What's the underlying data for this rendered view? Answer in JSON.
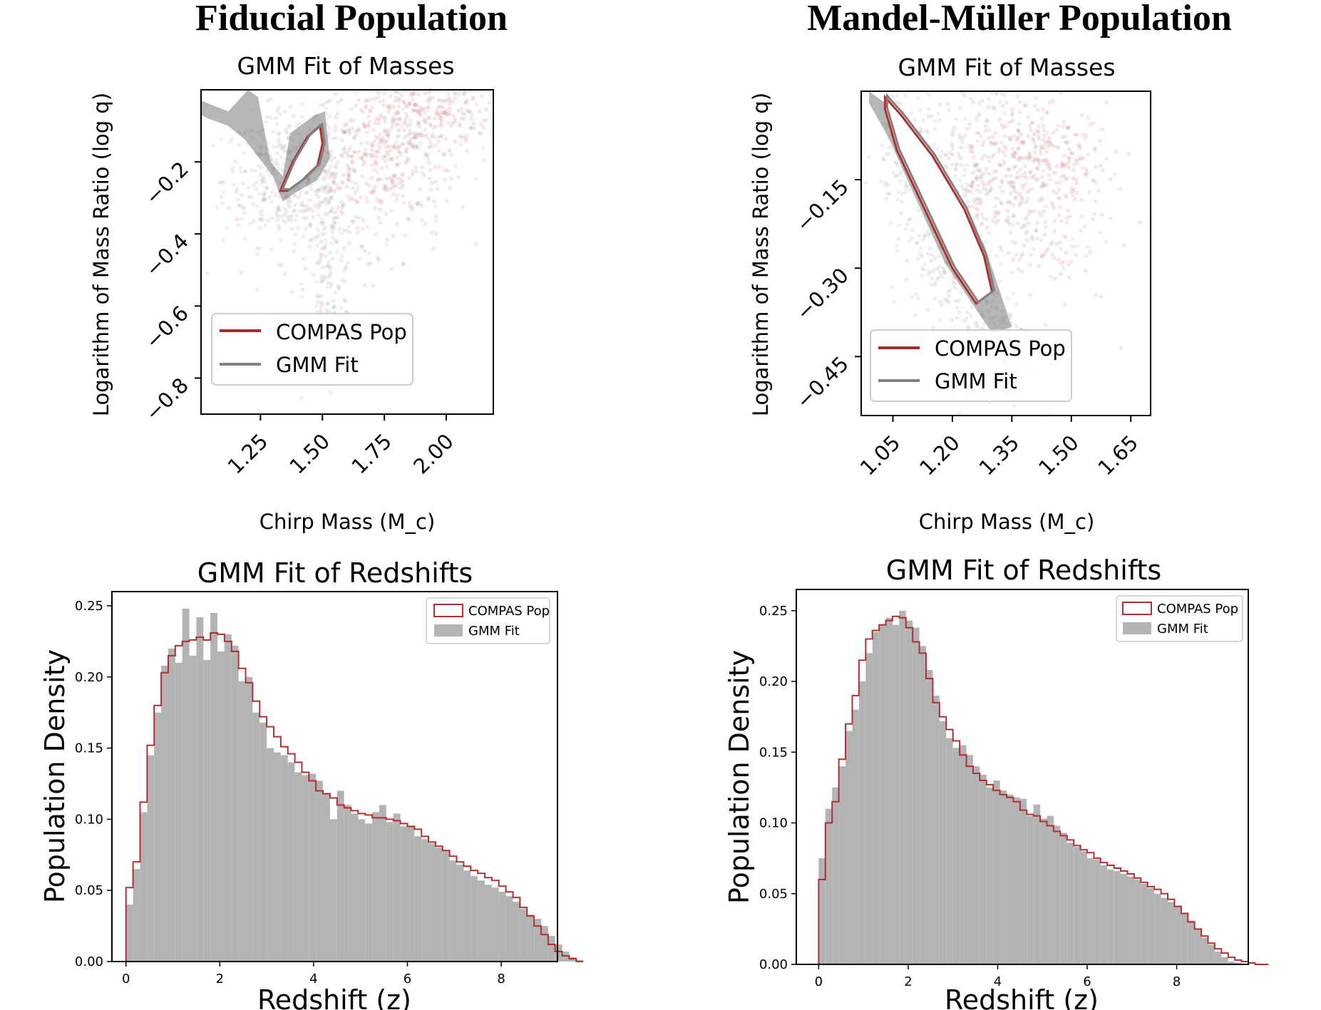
{
  "figure": {
    "col_titles": [
      "Fiducial Population",
      "Mandel-Müller Population"
    ]
  },
  "colors": {
    "compas": "#b03030",
    "gmm": "#808080",
    "hist_fill": "#b3b3b3",
    "scatter_red": "#c87070",
    "scatter_gray": "#9a9a9a"
  },
  "chart_data": [
    {
      "id": "fid_mass",
      "type": "scatter",
      "title": "GMM Fit of Masses",
      "xlabel": "Chirp Mass (M_c)",
      "ylabel": "Logarithm of Mass Ratio (log q)",
      "xlim": [
        1.01,
        2.19
      ],
      "ylim": [
        -0.9,
        0.0
      ],
      "xticks": [
        1.25,
        1.5,
        1.75,
        2.0
      ],
      "xticklabels": [
        "1.25",
        "1.50",
        "1.75",
        "2.00"
      ],
      "yticks": [
        -0.2,
        -0.4,
        -0.6,
        -0.8
      ],
      "yticklabels": [
        "−0.2",
        "−0.4",
        "−0.6",
        "−0.8"
      ],
      "legend": [
        "COMPAS Pop",
        "GMM Fit"
      ],
      "legend_loc": "lower left",
      "clusters": [
        {
          "cx": 1.38,
          "cy": -0.25,
          "sx": 0.14,
          "sy": 0.09,
          "n": 420,
          "color": "gray"
        },
        {
          "cx": 1.53,
          "cy": -0.55,
          "sx": 0.05,
          "sy": 0.12,
          "n": 140,
          "color": "gray"
        },
        {
          "cx": 1.75,
          "cy": -0.18,
          "sx": 0.14,
          "sy": 0.1,
          "n": 260,
          "color": "red"
        },
        {
          "cx": 1.95,
          "cy": -0.05,
          "sx": 0.14,
          "sy": 0.05,
          "n": 170,
          "color": "red"
        },
        {
          "cx": 1.6,
          "cy": -0.3,
          "sx": 0.2,
          "sy": 0.12,
          "n": 160,
          "color": "red"
        },
        {
          "cx": 1.9,
          "cy": -0.1,
          "sx": 0.15,
          "sy": 0.09,
          "n": 140,
          "color": "gray"
        }
      ],
      "contours": [
        {
          "kind": "outer",
          "points": [
            [
              1.01,
              -0.03
            ],
            [
              1.12,
              -0.06
            ],
            [
              1.2,
              0.0
            ],
            [
              1.24,
              -0.02
            ],
            [
              1.29,
              -0.2
            ],
            [
              1.34,
              -0.24
            ],
            [
              1.37,
              -0.12
            ],
            [
              1.47,
              -0.07
            ],
            [
              1.51,
              -0.06
            ],
            [
              1.53,
              -0.19
            ],
            [
              1.48,
              -0.25
            ],
            [
              1.38,
              -0.29
            ],
            [
              1.34,
              -0.31
            ],
            [
              1.3,
              -0.24
            ],
            [
              1.19,
              -0.14
            ],
            [
              1.12,
              -0.1
            ],
            [
              1.04,
              -0.08
            ],
            [
              1.01,
              -0.07
            ]
          ]
        },
        {
          "kind": "inner",
          "points": [
            [
              1.33,
              -0.28
            ],
            [
              1.38,
              -0.2
            ],
            [
              1.44,
              -0.13
            ],
            [
              1.49,
              -0.1
            ],
            [
              1.5,
              -0.15
            ],
            [
              1.48,
              -0.21
            ],
            [
              1.42,
              -0.25
            ],
            [
              1.36,
              -0.28
            ]
          ]
        }
      ]
    },
    {
      "id": "mm_mass",
      "type": "scatter",
      "title": "GMM Fit of Masses",
      "xlabel": "Chirp Mass (M_c)",
      "ylabel": "Logarithm of Mass Ratio (log q)",
      "xlim": [
        0.97,
        1.7
      ],
      "ylim": [
        -0.55,
        0.0
      ],
      "xticks": [
        1.05,
        1.2,
        1.35,
        1.5,
        1.65
      ],
      "xticklabels": [
        "1.05",
        "1.20",
        "1.35",
        "1.50",
        "1.65"
      ],
      "yticks": [
        -0.15,
        -0.3,
        -0.45
      ],
      "yticklabels": [
        "−0.15",
        "−0.30",
        "−0.45"
      ],
      "legend": [
        "COMPAS Pop",
        "GMM Fit"
      ],
      "legend_loc": "lower left",
      "clusters": [
        {
          "cx": 1.08,
          "cy": -0.1,
          "sx": 0.04,
          "sy": 0.06,
          "n": 120,
          "color": "gray"
        },
        {
          "cx": 1.18,
          "cy": -0.25,
          "sx": 0.05,
          "sy": 0.07,
          "n": 220,
          "color": "gray"
        },
        {
          "cx": 1.3,
          "cy": -0.42,
          "sx": 0.05,
          "sy": 0.06,
          "n": 180,
          "color": "gray"
        },
        {
          "cx": 1.35,
          "cy": -0.1,
          "sx": 0.1,
          "sy": 0.08,
          "n": 320,
          "color": "red"
        },
        {
          "cx": 1.42,
          "cy": -0.18,
          "sx": 0.09,
          "sy": 0.1,
          "n": 220,
          "color": "red"
        },
        {
          "cx": 1.3,
          "cy": -0.12,
          "sx": 0.12,
          "sy": 0.08,
          "n": 160,
          "color": "gray"
        }
      ],
      "contours": [
        {
          "kind": "outer",
          "points": [
            [
              0.99,
              0.0
            ],
            [
              1.05,
              -0.03
            ],
            [
              1.14,
              -0.1
            ],
            [
              1.22,
              -0.19
            ],
            [
              1.28,
              -0.26
            ],
            [
              1.32,
              -0.34
            ],
            [
              1.35,
              -0.4
            ],
            [
              1.3,
              -0.41
            ],
            [
              1.25,
              -0.36
            ],
            [
              1.18,
              -0.29
            ],
            [
              1.12,
              -0.2
            ],
            [
              1.04,
              -0.08
            ],
            [
              0.99,
              -0.02
            ]
          ]
        },
        {
          "kind": "inner",
          "points": [
            [
              1.03,
              -0.01
            ],
            [
              1.07,
              -0.04
            ],
            [
              1.15,
              -0.11
            ],
            [
              1.23,
              -0.2
            ],
            [
              1.28,
              -0.28
            ],
            [
              1.3,
              -0.34
            ],
            [
              1.26,
              -0.36
            ],
            [
              1.2,
              -0.3
            ],
            [
              1.13,
              -0.2
            ],
            [
              1.06,
              -0.1
            ],
            [
              1.03,
              -0.03
            ]
          ]
        }
      ]
    },
    {
      "id": "fid_z",
      "type": "bar",
      "title": "GMM Fit of Redshifts",
      "xlabel": "Redshift (z)",
      "ylabel": "Population Density",
      "xlim": [
        -0.3,
        9.2
      ],
      "ylim": [
        0.0,
        0.26
      ],
      "xticks": [
        0,
        2,
        4,
        6,
        8
      ],
      "yticks": [
        0.0,
        0.05,
        0.1,
        0.15,
        0.2,
        0.25
      ],
      "yticklabels": [
        "0.00",
        "0.05",
        "0.10",
        "0.15",
        "0.20",
        "0.25"
      ],
      "legend": [
        "COMPAS Pop",
        "GMM Fit"
      ],
      "legend_loc": "upper right",
      "bin_start": 0.0,
      "bin_width": 0.15,
      "gmm_values": [
        0.04,
        0.065,
        0.105,
        0.145,
        0.175,
        0.208,
        0.22,
        0.21,
        0.248,
        0.215,
        0.242,
        0.212,
        0.245,
        0.218,
        0.23,
        0.222,
        0.197,
        0.2,
        0.175,
        0.168,
        0.15,
        0.147,
        0.145,
        0.14,
        0.133,
        0.131,
        0.132,
        0.127,
        0.118,
        0.1,
        0.12,
        0.11,
        0.104,
        0.1,
        0.097,
        0.105,
        0.11,
        0.098,
        0.104,
        0.095,
        0.095,
        0.088,
        0.086,
        0.083,
        0.08,
        0.078,
        0.071,
        0.068,
        0.064,
        0.06,
        0.057,
        0.054,
        0.052,
        0.049,
        0.046,
        0.042,
        0.037,
        0.033,
        0.03,
        0.025,
        0.018,
        0.012,
        0.007,
        0.003,
        0.001
      ],
      "compas_values": [
        0.052,
        0.07,
        0.112,
        0.152,
        0.18,
        0.203,
        0.215,
        0.222,
        0.225,
        0.226,
        0.228,
        0.226,
        0.231,
        0.23,
        0.225,
        0.218,
        0.206,
        0.196,
        0.183,
        0.172,
        0.165,
        0.158,
        0.151,
        0.146,
        0.14,
        0.133,
        0.127,
        0.12,
        0.118,
        0.115,
        0.11,
        0.108,
        0.106,
        0.104,
        0.103,
        0.101,
        0.101,
        0.1,
        0.099,
        0.097,
        0.095,
        0.093,
        0.088,
        0.084,
        0.081,
        0.078,
        0.074,
        0.07,
        0.067,
        0.064,
        0.062,
        0.059,
        0.057,
        0.053,
        0.049,
        0.045,
        0.038,
        0.032,
        0.025,
        0.019,
        0.012,
        0.007,
        0.004,
        0.002,
        0.0
      ]
    },
    {
      "id": "mm_z",
      "type": "bar",
      "title": "GMM Fit of Redshifts",
      "xlabel": "Redshift (z)",
      "ylabel": "Population Density",
      "xlim": [
        -0.5,
        9.6
      ],
      "ylim": [
        0.0,
        0.265
      ],
      "xticks": [
        0,
        2,
        4,
        6,
        8
      ],
      "yticks": [
        0.0,
        0.05,
        0.1,
        0.15,
        0.2,
        0.25
      ],
      "yticklabels": [
        "0.00",
        "0.05",
        "0.10",
        "0.15",
        "0.20",
        "0.25"
      ],
      "legend": [
        "COMPAS Pop",
        "GMM Fit"
      ],
      "legend_loc": "upper right",
      "bin_start": 0.0,
      "bin_width": 0.15,
      "gmm_values": [
        0.075,
        0.11,
        0.125,
        0.14,
        0.165,
        0.18,
        0.2,
        0.22,
        0.235,
        0.24,
        0.245,
        0.24,
        0.25,
        0.243,
        0.238,
        0.225,
        0.208,
        0.19,
        0.172,
        0.16,
        0.153,
        0.155,
        0.148,
        0.14,
        0.134,
        0.125,
        0.13,
        0.123,
        0.12,
        0.118,
        0.117,
        0.105,
        0.113,
        0.103,
        0.105,
        0.098,
        0.093,
        0.086,
        0.083,
        0.08,
        0.075,
        0.074,
        0.07,
        0.067,
        0.066,
        0.064,
        0.062,
        0.06,
        0.057,
        0.054,
        0.05,
        0.047,
        0.044,
        0.041,
        0.036,
        0.031,
        0.025,
        0.019,
        0.014,
        0.009,
        0.005,
        0.002,
        0.001,
        0.0,
        0.0,
        0.0,
        0.0
      ],
      "compas_values": [
        0.06,
        0.1,
        0.115,
        0.145,
        0.17,
        0.19,
        0.215,
        0.23,
        0.236,
        0.24,
        0.243,
        0.246,
        0.245,
        0.238,
        0.228,
        0.22,
        0.202,
        0.185,
        0.175,
        0.166,
        0.158,
        0.148,
        0.14,
        0.135,
        0.13,
        0.127,
        0.123,
        0.12,
        0.118,
        0.115,
        0.109,
        0.106,
        0.105,
        0.101,
        0.098,
        0.094,
        0.091,
        0.088,
        0.084,
        0.081,
        0.079,
        0.075,
        0.072,
        0.07,
        0.068,
        0.066,
        0.064,
        0.061,
        0.058,
        0.055,
        0.053,
        0.05,
        0.046,
        0.041,
        0.036,
        0.03,
        0.025,
        0.02,
        0.015,
        0.011,
        0.008,
        0.005,
        0.003,
        0.002,
        0.001,
        0.0,
        0.0
      ]
    }
  ]
}
